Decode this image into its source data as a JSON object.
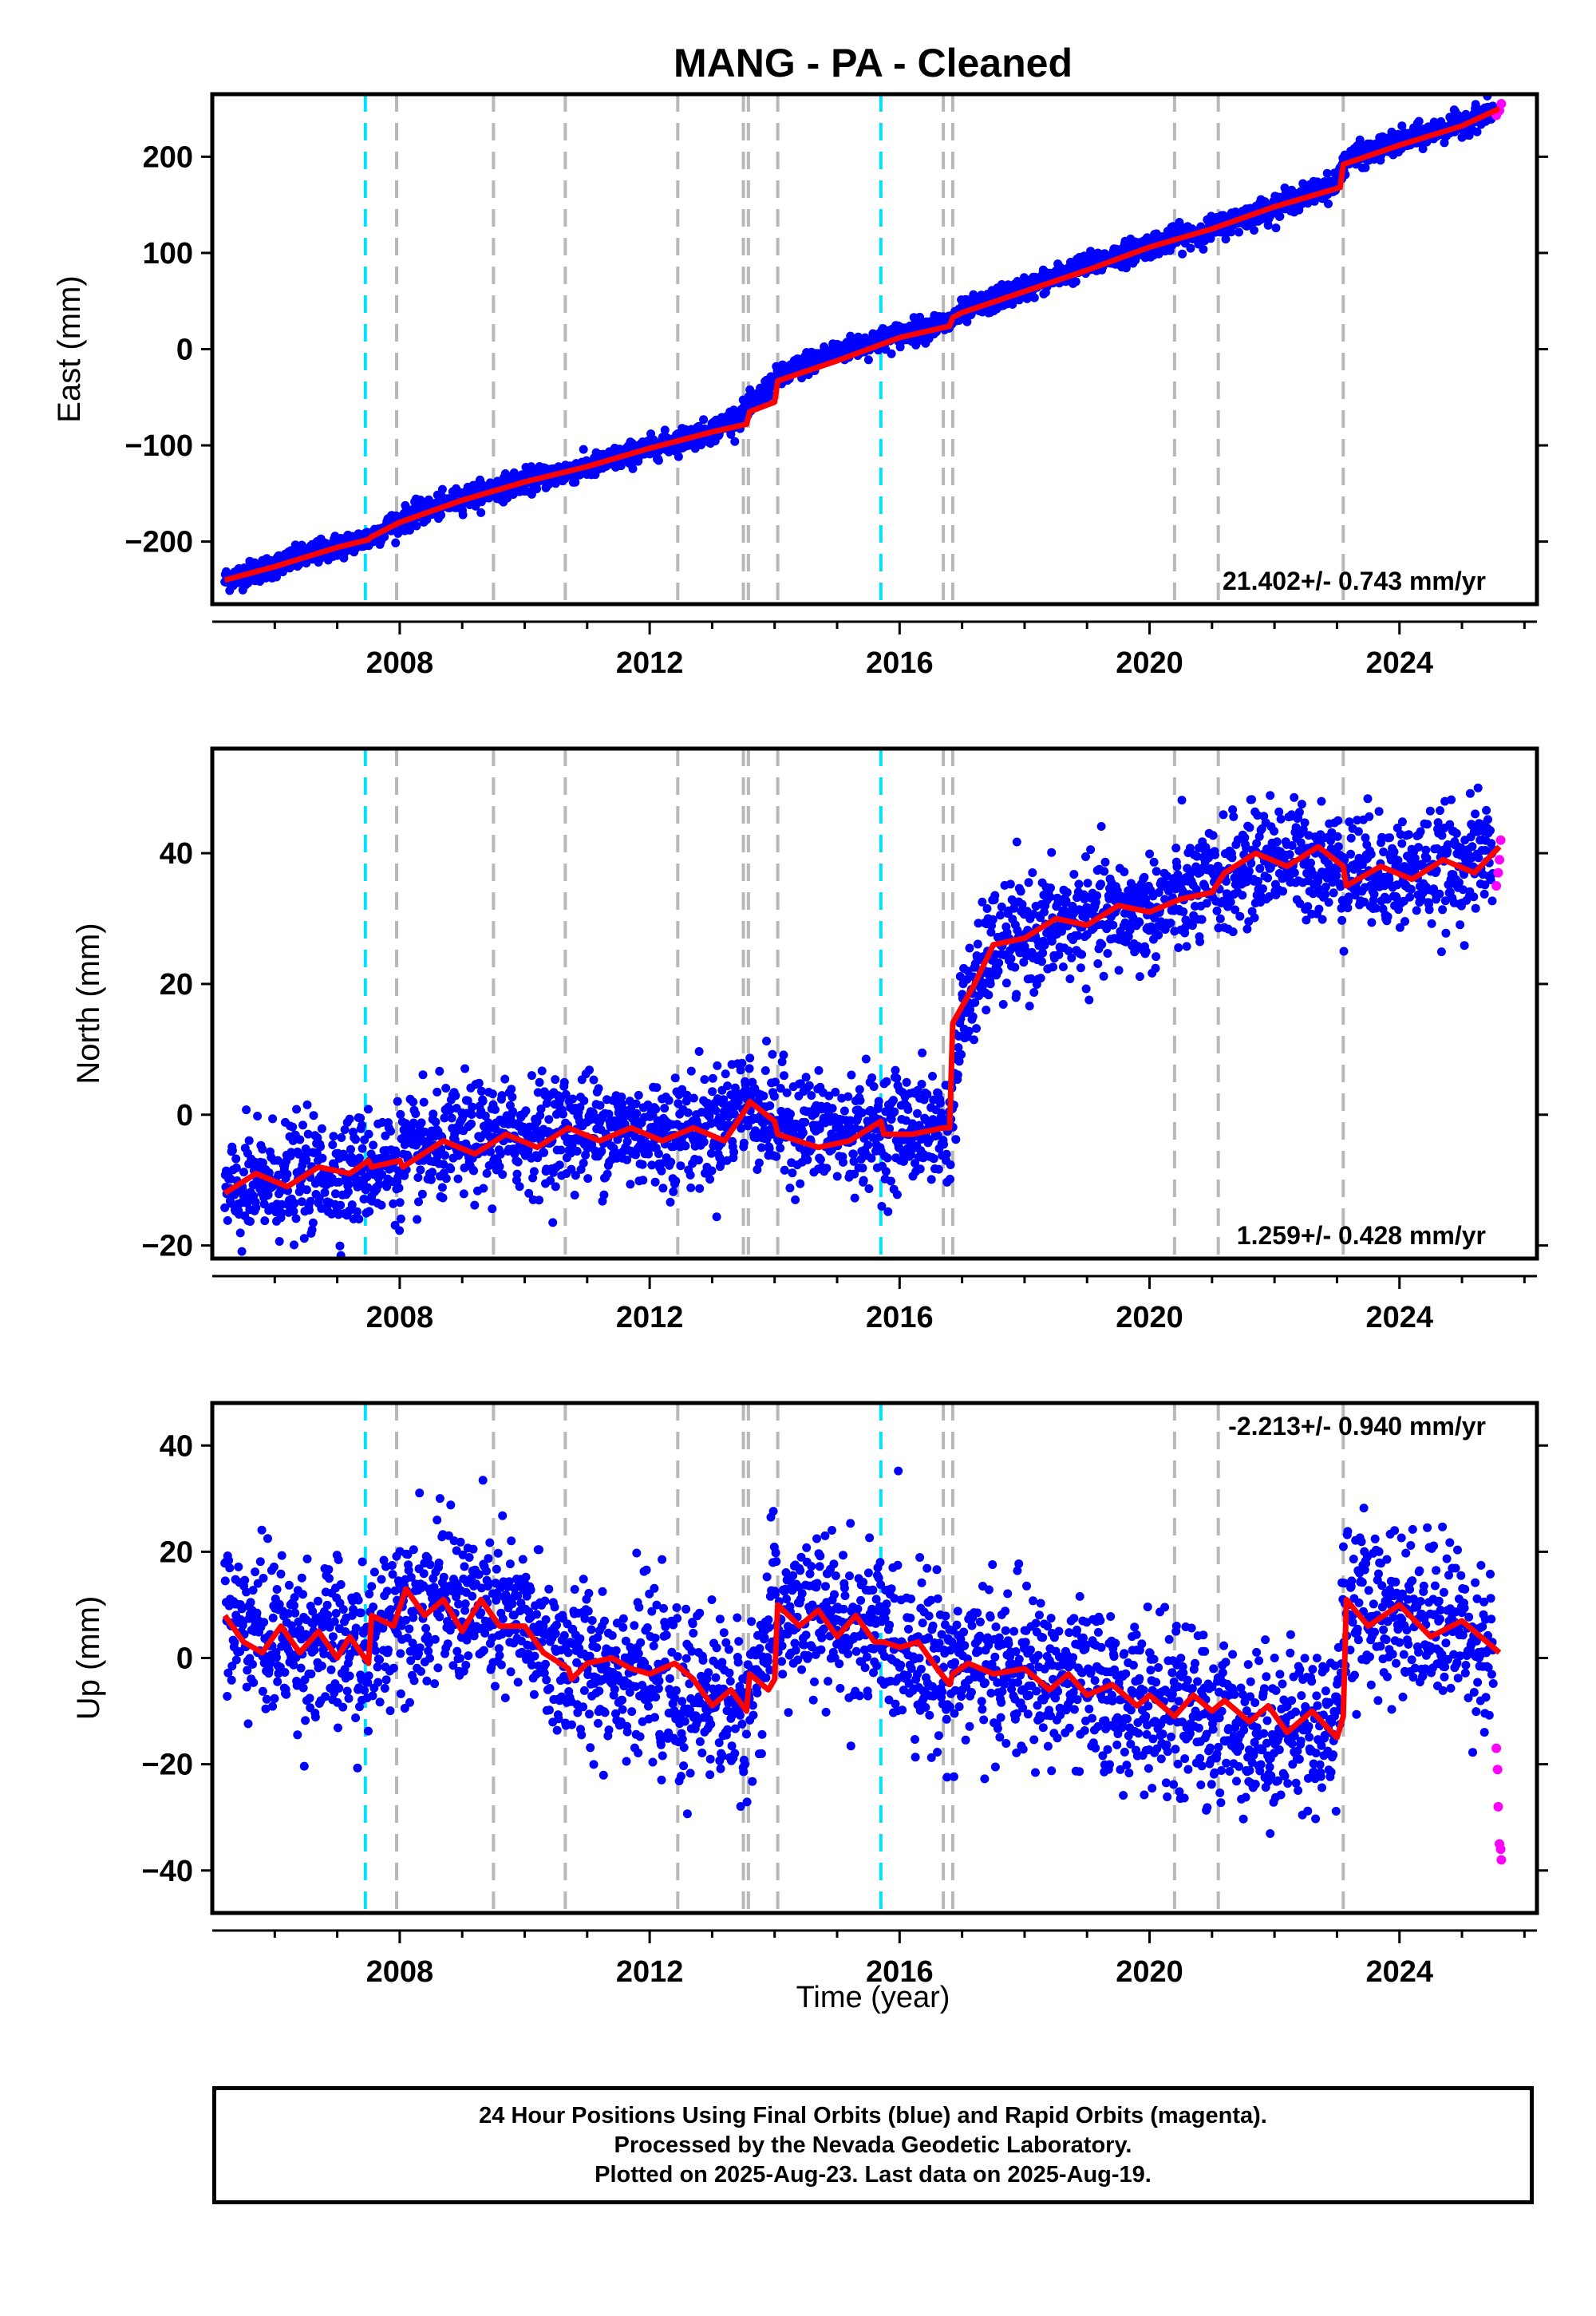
{
  "chart_data": [
    {
      "type": "scatter",
      "title": "MANG  - PA - Cleaned",
      "xlabel": "",
      "ylabel": "East (mm)",
      "xlim": [
        2005.0,
        2026.2
      ],
      "ylim": [
        -265,
        265
      ],
      "xticks": [
        2008,
        2012,
        2016,
        2020,
        2024
      ],
      "yticks": [
        -200,
        -100,
        0,
        100,
        200
      ],
      "ytick_labels": [
        "−200",
        "−100",
        "0",
        "100",
        "200"
      ],
      "rate_label": "21.402+/- 0.743 mm/yr",
      "rate_position": "bottom-right",
      "grid": false,
      "series": [
        {
          "color": "#0000ff",
          "x": [
            2005.2,
            2006.0,
            2007.0,
            2007.5,
            2008.0,
            2009.0,
            2010.0,
            2011.0,
            2012.0,
            2013.0,
            2013.55,
            2014.0,
            2014.5,
            2015.0,
            2016.0,
            2016.8,
            2017.0,
            2018.0,
            2019.0,
            2020.0,
            2021.0,
            2022.0,
            2023.0,
            2023.1,
            2024.0,
            2025.0,
            2025.5
          ],
          "y": [
            -240,
            -225,
            -205,
            -197,
            -178,
            -155,
            -137,
            -123,
            -103,
            -85,
            -65,
            -33,
            -15,
            -3,
            15,
            28,
            38,
            63,
            87,
            108,
            125,
            148,
            172,
            195,
            215,
            235,
            248
          ]
        },
        {
          "color": "#ff00ff",
          "x": [
            2025.55,
            2025.6,
            2025.63
          ],
          "y": [
            243,
            248,
            255
          ]
        }
      ],
      "model": {
        "color": "#ff0000",
        "x": [
          2005.2,
          2006.0,
          2007.0,
          2007.5,
          2007.55,
          2008.0,
          2009.0,
          2010.0,
          2011.0,
          2012.0,
          2013.0,
          2013.55,
          2013.6,
          2014.0,
          2014.05,
          2015.0,
          2016.0,
          2016.8,
          2016.85,
          2017.0,
          2018.0,
          2019.0,
          2020.0,
          2021.0,
          2022.0,
          2023.05,
          2023.1,
          2024.0,
          2025.0,
          2025.6
        ],
        "y": [
          -240,
          -226,
          -206,
          -198,
          -195,
          -180,
          -157,
          -138,
          -122,
          -103,
          -86,
          -78,
          -65,
          -55,
          -33,
          -12,
          12,
          24,
          33,
          38,
          60,
          82,
          106,
          125,
          148,
          168,
          192,
          212,
          232,
          250
        ]
      }
    },
    {
      "type": "scatter",
      "title": "",
      "xlabel": "",
      "ylabel": "North (mm)",
      "xlim": [
        2005.0,
        2026.2
      ],
      "ylim": [
        -22,
        56
      ],
      "xticks": [
        2008,
        2012,
        2016,
        2020,
        2024
      ],
      "yticks": [
        -20,
        0,
        20,
        40
      ],
      "ytick_labels": [
        "−20",
        "0",
        "20",
        "40"
      ],
      "rate_label": "1.259+/- 0.428 mm/yr",
      "rate_position": "bottom-right",
      "grid": false,
      "series": [
        {
          "color": "#0000ff",
          "x": [
            2005.2,
            2006.0,
            2007.0,
            2008.0,
            2009.0,
            2010.0,
            2011.0,
            2012.0,
            2013.0,
            2013.5,
            2014.0,
            2015.0,
            2016.0,
            2016.8,
            2017.0,
            2017.5,
            2018.0,
            2019.0,
            2020.0,
            2021.0,
            2022.0,
            2023.0,
            2024.0,
            2025.0,
            2025.5
          ],
          "y": [
            -13,
            -10,
            -9,
            -7,
            -4,
            -3,
            -2,
            -3,
            -2,
            2,
            -1,
            -3,
            -2,
            -2,
            15,
            26,
            27,
            30,
            31,
            35,
            40,
            38,
            37,
            38,
            41
          ]
        },
        {
          "color": "#ff00ff",
          "x": [
            2025.55,
            2025.58,
            2025.6,
            2025.62
          ],
          "y": [
            35,
            37,
            39,
            42
          ]
        }
      ],
      "model": {
        "color": "#ff0000",
        "x": [
          2005.2,
          2005.7,
          2006.2,
          2006.7,
          2007.2,
          2007.5,
          2007.55,
          2008.0,
          2008.05,
          2008.7,
          2009.2,
          2009.7,
          2010.2,
          2010.7,
          2011.2,
          2011.7,
          2012.2,
          2012.7,
          2013.2,
          2013.55,
          2013.6,
          2014.0,
          2014.05,
          2014.7,
          2015.2,
          2015.7,
          2015.75,
          2016.2,
          2016.7,
          2016.8,
          2016.85,
          2017.2,
          2017.5,
          2018.0,
          2018.5,
          2019.0,
          2019.5,
          2020.0,
          2020.5,
          2021.0,
          2021.2,
          2021.7,
          2022.2,
          2022.7,
          2023.1,
          2023.15,
          2023.7,
          2024.2,
          2024.7,
          2025.2,
          2025.6
        ],
        "y": [
          -12,
          -9,
          -11,
          -8,
          -9,
          -7,
          -8,
          -7,
          -8,
          -4,
          -6,
          -3,
          -5,
          -2,
          -4,
          -2,
          -4,
          -2,
          -4,
          1,
          2,
          -1,
          -3,
          -5,
          -4,
          -1,
          -3,
          -3,
          -2,
          -2,
          14,
          20,
          26,
          27,
          30,
          29,
          32,
          31,
          33,
          34,
          37,
          40,
          38,
          41,
          38,
          35,
          38,
          36,
          39,
          37,
          41
        ]
      }
    },
    {
      "type": "scatter",
      "title": "",
      "xlabel": "Time (year)",
      "ylabel": "Up (mm)",
      "xlim": [
        2005.0,
        2026.2
      ],
      "ylim": [
        -48,
        48
      ],
      "xticks": [
        2008,
        2012,
        2016,
        2020,
        2024
      ],
      "yticks": [
        -40,
        -20,
        0,
        20,
        40
      ],
      "ytick_labels": [
        "−40",
        "−20",
        "0",
        "20",
        "40"
      ],
      "rate_label": "-2.213+/- 0.940 mm/yr",
      "rate_position": "top-right",
      "grid": false,
      "series": [
        {
          "color": "#0000ff",
          "x": [
            2005.2,
            2006.0,
            2007.0,
            2007.5,
            2008.0,
            2009.0,
            2010.0,
            2010.7,
            2011.0,
            2012.0,
            2012.5,
            2013.0,
            2013.5,
            2014.0,
            2015.0,
            2016.0,
            2016.8,
            2017.0,
            2018.0,
            2019.0,
            2020.0,
            2021.0,
            2022.0,
            2023.0,
            2023.1,
            2024.0,
            2025.0,
            2025.5
          ],
          "y": [
            7,
            4,
            2,
            0,
            11,
            10,
            6,
            -2,
            -1,
            -3,
            -9,
            -6,
            -11,
            8,
            7,
            3,
            -2,
            -1,
            -3,
            -6,
            -9,
            -12,
            -14,
            -12,
            10,
            9,
            6,
            1
          ]
        },
        {
          "color": "#ff00ff",
          "x": [
            2025.55,
            2025.57,
            2025.58,
            2025.6,
            2025.62,
            2025.63
          ],
          "y": [
            -17,
            -21,
            -28,
            -35,
            -36,
            -38
          ]
        }
      ],
      "model": {
        "color": "#ff0000",
        "x": [
          2005.2,
          2005.5,
          2005.8,
          2006.1,
          2006.4,
          2006.7,
          2007.0,
          2007.2,
          2007.5,
          2007.55,
          2007.9,
          2008.1,
          2008.4,
          2008.7,
          2009.0,
          2009.3,
          2009.6,
          2010.0,
          2010.3,
          2010.7,
          2010.75,
          2011.0,
          2011.4,
          2011.7,
          2012.0,
          2012.4,
          2012.7,
          2013.0,
          2013.3,
          2013.55,
          2013.6,
          2013.9,
          2014.0,
          2014.05,
          2014.4,
          2014.7,
          2015.0,
          2015.3,
          2015.6,
          2015.75,
          2016.0,
          2016.3,
          2016.6,
          2016.8,
          2016.85,
          2017.1,
          2017.5,
          2018.0,
          2018.4,
          2018.7,
          2019.0,
          2019.4,
          2019.8,
          2020.0,
          2020.4,
          2020.7,
          2021.0,
          2021.2,
          2021.6,
          2021.9,
          2022.2,
          2022.6,
          2023.0,
          2023.1,
          2023.15,
          2023.5,
          2024.0,
          2024.5,
          2025.0,
          2025.6
        ],
        "y": [
          8,
          3,
          1,
          6,
          1,
          5,
          0,
          4,
          -1,
          8,
          6,
          13,
          8,
          11,
          5,
          11,
          6,
          6,
          1,
          -2,
          -4,
          -1,
          0,
          -2,
          -3,
          -1,
          -4,
          -9,
          -6,
          -10,
          -3,
          -6,
          -4,
          10,
          6,
          9,
          4,
          8,
          3,
          3,
          2,
          3,
          -2,
          -5,
          -3,
          -1,
          -3,
          -2,
          -6,
          -3,
          -7,
          -5,
          -9,
          -7,
          -11,
          -7,
          -10,
          -8,
          -12,
          -9,
          -14,
          -10,
          -15,
          -11,
          11,
          6,
          10,
          4,
          7,
          1
        ]
      }
    }
  ],
  "markers": {
    "cyan_lines": [
      2007.45,
      2015.7
    ],
    "gray_lines": [
      2007.95,
      2009.5,
      2010.65,
      2012.45,
      2013.5,
      2013.58,
      2014.05,
      2016.7,
      2016.85,
      2020.4,
      2021.1,
      2023.1
    ],
    "cyan_color": "#00e0ff",
    "gray_color": "#b8b8b8"
  },
  "colors": {
    "data": "#0000ff",
    "rapid": "#ff00ff",
    "model": "#ff0000"
  },
  "footer": {
    "line1": "24 Hour Positions Using Final Orbits (blue) and Rapid Orbits (magenta).",
    "line2": "Processed by the Nevada Geodetic Laboratory.",
    "line3": "Plotted on 2025-Aug-23. Last data on 2025-Aug-19."
  }
}
